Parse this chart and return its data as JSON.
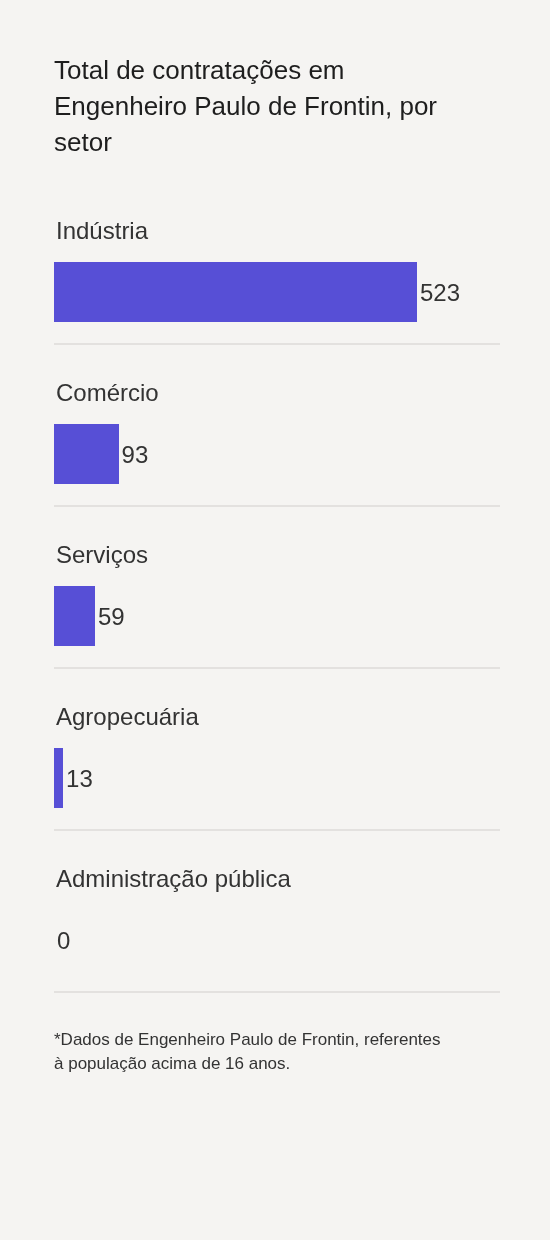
{
  "chart_data": {
    "type": "bar",
    "orientation": "horizontal",
    "title": "Total de contratações em Engenheiro Paulo de Frontin, por setor",
    "categories": [
      "Indústria",
      "Comércio",
      "Serviços",
      "Agropecuária",
      "Administração pública"
    ],
    "values": [
      523,
      93,
      59,
      13,
      0
    ],
    "color": "#574fd6",
    "data_labels": true,
    "annotations": [
      "*Dados de Engenheiro Paulo de Frontin, referentes à população acima de 16 anos."
    ]
  }
}
